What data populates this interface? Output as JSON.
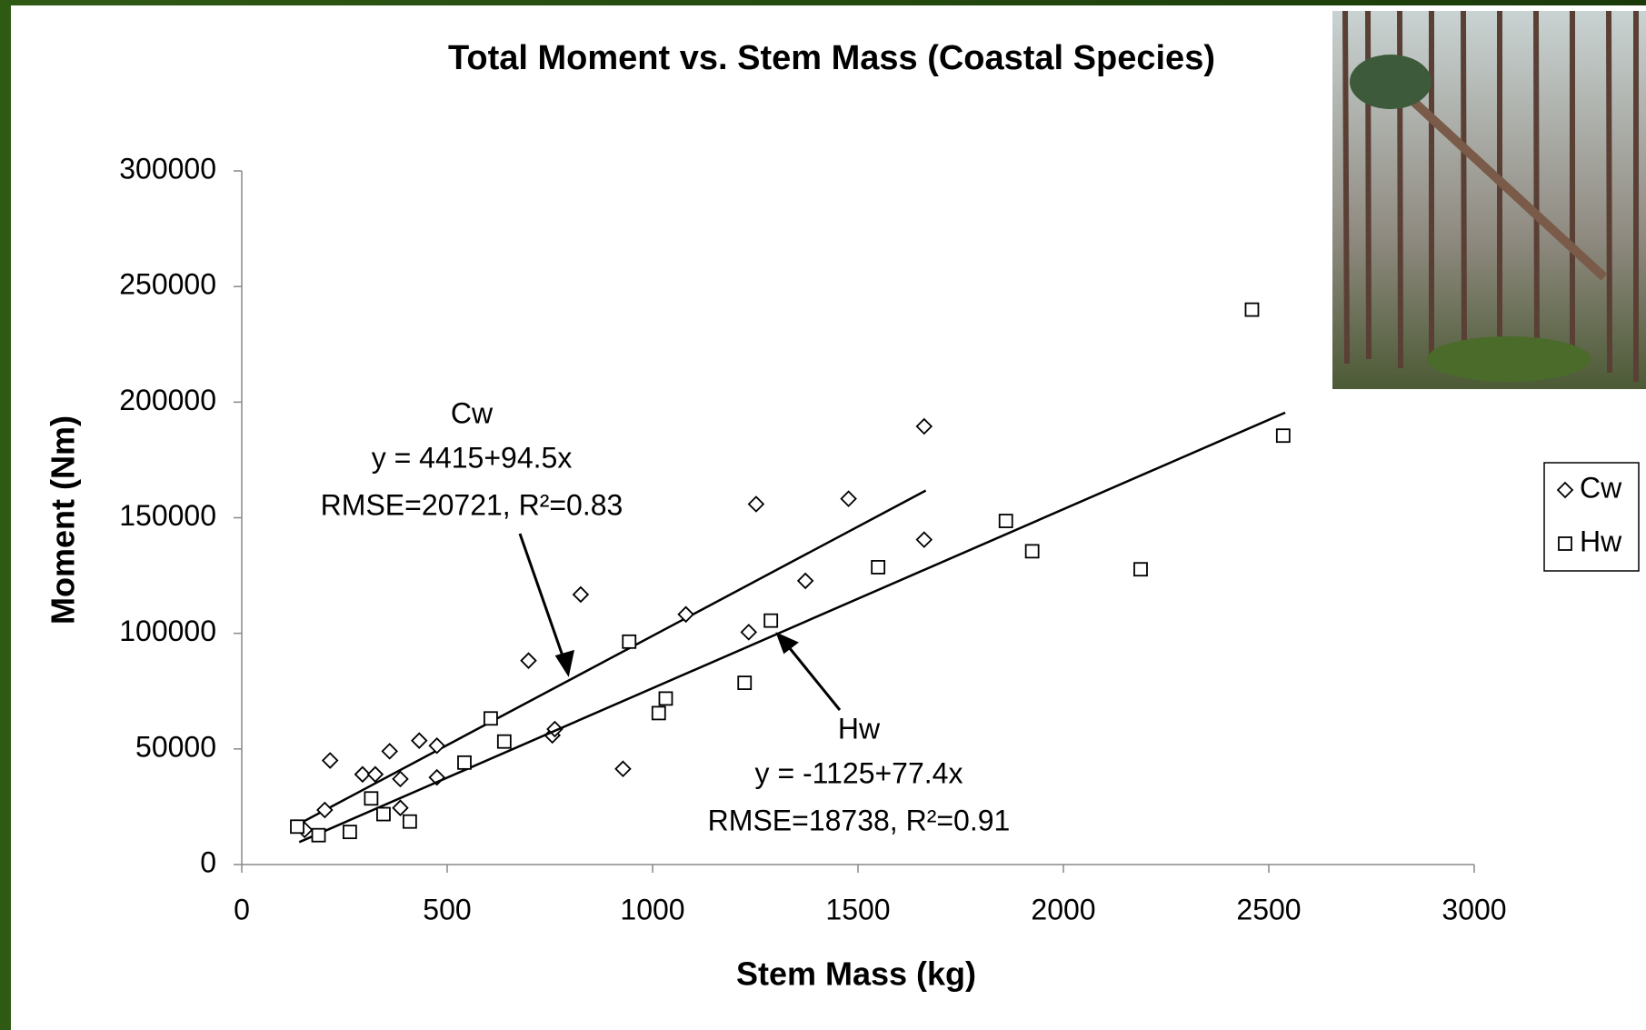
{
  "chart_data": {
    "type": "scatter",
    "title": "Total Moment vs. Stem Mass (Coastal Species)",
    "x_label": "Stem Mass (kg)",
    "y_label": "Moment (Nm)",
    "xlim": [
      0,
      3000
    ],
    "xticks": [
      0,
      500,
      1000,
      1500,
      2000,
      2500,
      3000
    ],
    "ylim": [
      0,
      300000
    ],
    "yticks": [
      0,
      50000,
      100000,
      150000,
      200000,
      250000,
      300000
    ],
    "legend": "right",
    "series": [
      {
        "name": "Cw",
        "marker": "diamond",
        "color": "#000000",
        "x": [
          153,
          202,
          215,
          294,
          325,
          360,
          386,
          386,
          432,
          475,
          475,
          698,
          756,
          762,
          825,
          928,
          1081,
          1234,
          1252,
          1372,
          1477,
          1661,
          1661
        ],
        "values": [
          15000,
          23600,
          45000,
          39000,
          39000,
          49000,
          37000,
          24500,
          53600,
          51400,
          37700,
          88200,
          55900,
          58600,
          116800,
          41400,
          108200,
          100500,
          155900,
          122700,
          158200,
          189500,
          140500
        ],
        "trend": {
          "intercept": 4415,
          "slope": 94.5,
          "x_start": 135,
          "x_end": 1665
        },
        "equation": "y = 4415+94.5x",
        "fit": "RMSE=20721, R²=0.83"
      },
      {
        "name": "Hw",
        "marker": "square",
        "color": "#000000",
        "x": [
          135,
          187,
          263,
          315,
          345,
          409,
          542,
          606,
          639,
          943,
          1015,
          1032,
          1224,
          1288,
          1549,
          1860,
          1924,
          2188,
          2459,
          2535
        ],
        "values": [
          16400,
          12700,
          14100,
          28600,
          21800,
          18600,
          44100,
          63200,
          53200,
          96400,
          65500,
          71800,
          78600,
          105500,
          128600,
          148600,
          135500,
          127700,
          240000,
          185500
        ],
        "trend": {
          "intercept": -1125,
          "slope": 77.4,
          "x_start": 140,
          "x_end": 2540
        },
        "equation": "y = -1125+77.4x",
        "fit": "RMSE=18738, R²=0.91"
      }
    ]
  }
}
